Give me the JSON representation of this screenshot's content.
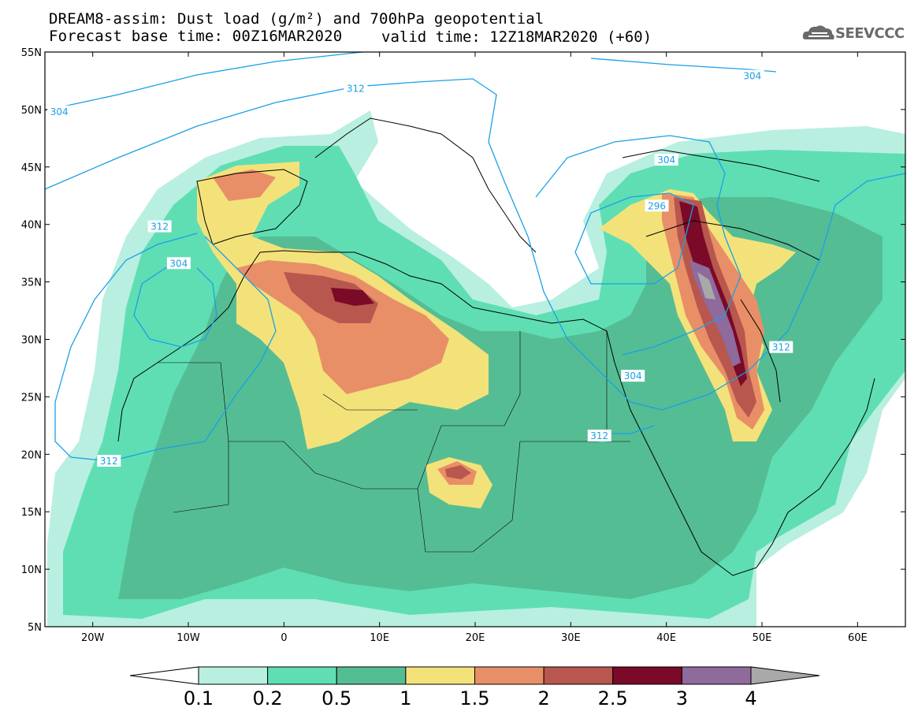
{
  "header": {
    "title_line1": "DREAM8-assim: Dust load (g/m²) and 700hPa geopotential",
    "title_line2": "Forecast base time: 00Z16MAR2020",
    "valid_time": "valid time: 12Z18MAR2020 (+60)",
    "logo_text": "SEEVCCC",
    "logo_icon": "cloud-icon"
  },
  "map": {
    "extent": {
      "lon": [
        -25,
        65
      ],
      "lat": [
        5,
        55
      ]
    },
    "lat_ticks": [
      {
        "value": 55,
        "label": "55N"
      },
      {
        "value": 50,
        "label": "50N"
      },
      {
        "value": 45,
        "label": "45N"
      },
      {
        "value": 40,
        "label": "40N"
      },
      {
        "value": 35,
        "label": "35N"
      },
      {
        "value": 30,
        "label": "30N"
      },
      {
        "value": 25,
        "label": "25N"
      },
      {
        "value": 20,
        "label": "20N"
      },
      {
        "value": 15,
        "label": "15N"
      },
      {
        "value": 10,
        "label": "10N"
      },
      {
        "value": 5,
        "label": "5N"
      }
    ],
    "lon_ticks": [
      {
        "value": -20,
        "label": "20W"
      },
      {
        "value": -10,
        "label": "10W"
      },
      {
        "value": 0,
        "label": "0"
      },
      {
        "value": 10,
        "label": "10E"
      },
      {
        "value": 20,
        "label": "20E"
      },
      {
        "value": 30,
        "label": "30E"
      },
      {
        "value": 40,
        "label": "40E"
      },
      {
        "value": 50,
        "label": "50E"
      },
      {
        "value": 60,
        "label": "60E"
      }
    ],
    "contour_labels": [
      {
        "text": "304",
        "lon": -23.5,
        "lat": 49.8
      },
      {
        "text": "312",
        "lon": 7.5,
        "lat": 51.8
      },
      {
        "text": "304",
        "lon": 49,
        "lat": 52.9
      },
      {
        "text": "304",
        "lon": 40,
        "lat": 45.6
      },
      {
        "text": "296",
        "lon": 39,
        "lat": 41.6
      },
      {
        "text": "312",
        "lon": -13,
        "lat": 39.8
      },
      {
        "text": "304",
        "lon": -11,
        "lat": 36.6
      },
      {
        "text": "304",
        "lon": 36.5,
        "lat": 26.8
      },
      {
        "text": "312",
        "lon": 52,
        "lat": 29.3
      },
      {
        "text": "312",
        "lon": 33,
        "lat": 21.6
      },
      {
        "text": "312",
        "lon": -18.3,
        "lat": 19.4
      }
    ]
  },
  "colorbar": {
    "colors": [
      "#b8efe0",
      "#5fdeb4",
      "#55bd94",
      "#f3e27a",
      "#e88f68",
      "#b8574d",
      "#7a0a28",
      "#8f6a9c"
    ],
    "low_color": "#ffffff",
    "high_color": "#a9a9a9",
    "tick_labels": [
      "0.1",
      "0.2",
      "0.5",
      "1",
      "1.5",
      "2",
      "2.5",
      "3",
      "4"
    ]
  }
}
